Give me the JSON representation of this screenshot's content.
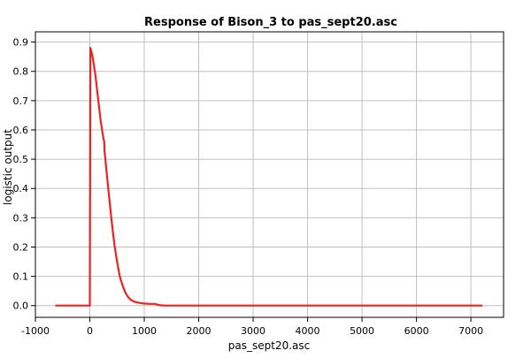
{
  "chart_data": {
    "type": "line",
    "title": "Response of Bison_3 to pas_sept20.asc",
    "xlabel": "pas_sept20.asc",
    "ylabel": "logistic output",
    "xlim": [
      -1000,
      7600
    ],
    "ylim": [
      -0.04,
      0.935
    ],
    "x_ticks": [
      -1000,
      0,
      1000,
      2000,
      3000,
      4000,
      5000,
      6000,
      7000
    ],
    "y_ticks": [
      0.0,
      0.1,
      0.2,
      0.3,
      0.4,
      0.5,
      0.6,
      0.7,
      0.8,
      0.9
    ],
    "x_tick_labels": [
      "-1000",
      "0",
      "1000",
      "2000",
      "3000",
      "4000",
      "5000",
      "6000",
      "7000"
    ],
    "y_tick_labels": [
      "0.0",
      "0.1",
      "0.2",
      "0.3",
      "0.4",
      "0.5",
      "0.6",
      "0.7",
      "0.8",
      "0.9"
    ],
    "grid": true,
    "series": [
      {
        "color": "#ee2222",
        "x": [
          -620,
          -100,
          0,
          5,
          10,
          20,
          50,
          100,
          150,
          200,
          250,
          265,
          270,
          300,
          350,
          400,
          450,
          500,
          550,
          600,
          650,
          700,
          750,
          800,
          850,
          900,
          950,
          1000,
          1100,
          1200,
          1250,
          1300,
          1400,
          2000,
          3000,
          4000,
          5000,
          6000,
          7000,
          7200
        ],
        "y": [
          0.0,
          0.0,
          0.0,
          0.4,
          0.88,
          0.875,
          0.85,
          0.79,
          0.71,
          0.63,
          0.57,
          0.56,
          0.53,
          0.47,
          0.38,
          0.29,
          0.21,
          0.15,
          0.1,
          0.07,
          0.045,
          0.03,
          0.02,
          0.015,
          0.012,
          0.01,
          0.008,
          0.007,
          0.006,
          0.006,
          0.003,
          0.001,
          0.0,
          0.0,
          0.0,
          0.0,
          0.0,
          0.0,
          0.0,
          0.0
        ]
      }
    ]
  }
}
